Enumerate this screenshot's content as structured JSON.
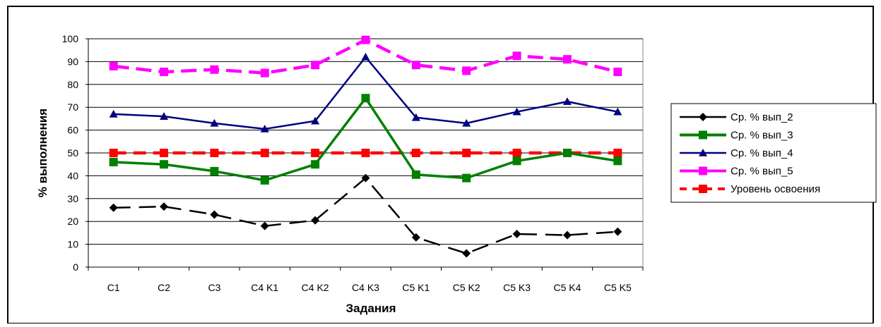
{
  "chart_data": {
    "type": "line",
    "title": "",
    "xlabel": "Задания",
    "ylabel": "% выполнения",
    "ylim": [
      0,
      100
    ],
    "ytick_step": 10,
    "grid": "horizontal major",
    "legend_position": "right",
    "categories": [
      "C1",
      "C2",
      "C3",
      "C4 K1",
      "C4 K2",
      "C4 K3",
      "C5 K1",
      "C5 K2",
      "C5 K3",
      "C5 K4",
      "C5 K5"
    ],
    "series": [
      {
        "name": "Ср. % вып_2",
        "color": "#000000",
        "marker": "diamond",
        "line_style": "dashed",
        "values": [
          26,
          26.5,
          23,
          18,
          20.5,
          39,
          13,
          6,
          14.5,
          14,
          15.5
        ]
      },
      {
        "name": "Ср. % вып_3",
        "color": "#008000",
        "marker": "square",
        "line_style": "solid",
        "values": [
          46,
          45,
          42,
          38,
          45,
          74,
          40.5,
          39,
          46.5,
          50,
          46.5
        ]
      },
      {
        "name": "Ср. % вып_4",
        "color": "#000080",
        "marker": "triangle",
        "line_style": "solid",
        "values": [
          67,
          66,
          63,
          60.5,
          64,
          92,
          65.5,
          63,
          68,
          72.5,
          68
        ]
      },
      {
        "name": "Ср. % вып_5",
        "color": "#ff00ff",
        "marker": "square",
        "line_style": "dashed",
        "values": [
          88,
          85.5,
          86.5,
          85,
          88.5,
          99.5,
          88.5,
          86,
          92.5,
          91,
          85.5
        ]
      },
      {
        "name": "Уровень освоения",
        "color": "#ff0000",
        "marker": "square",
        "line_style": "dashed",
        "values": [
          50,
          50,
          50,
          50,
          50,
          50,
          50,
          50,
          50,
          50,
          50
        ]
      }
    ]
  }
}
